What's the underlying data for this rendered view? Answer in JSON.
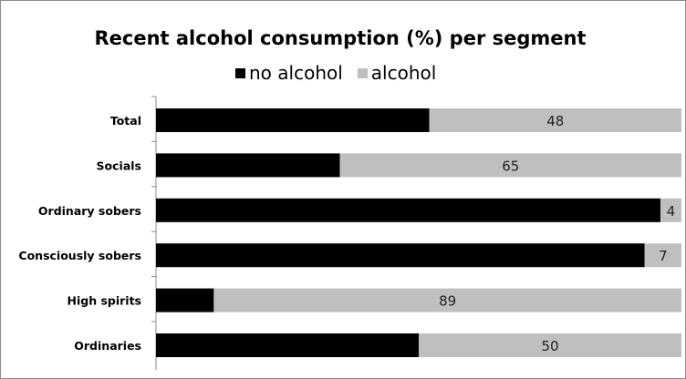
{
  "chart_data": {
    "type": "bar",
    "orientation": "horizontal",
    "stacked": true,
    "title": "Recent alcohol consumption (%) per segment",
    "categories": [
      "Total",
      "Socials",
      "Ordinary sobers",
      "Consciously sobers",
      "High spirits",
      "Ordinaries"
    ],
    "series": [
      {
        "name": "no alcohol",
        "color": "#000000",
        "values": [
          52,
          35,
          96,
          93,
          11,
          50
        ]
      },
      {
        "name": "alcohol",
        "color": "#bfbfbf",
        "values": [
          48,
          65,
          4,
          7,
          89,
          50
        ]
      }
    ],
    "data_labels": [
      "48",
      "65",
      "4",
      "7",
      "89",
      "50"
    ],
    "xlim": [
      0,
      100
    ],
    "grid": false,
    "legend_position": "top"
  }
}
